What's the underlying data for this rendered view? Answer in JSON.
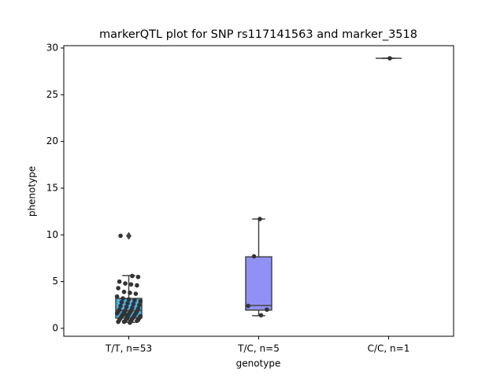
{
  "chart_data": {
    "type": "box",
    "title": "markerQTL plot for SNP rs117141563 and marker_3518",
    "xlabel": "genotype",
    "ylabel": "phenotype",
    "categories": [
      "T/T, n=53",
      "T/C, n=5",
      "C/C, n=1"
    ],
    "colors": [
      "#48b0e8",
      "#9191f5",
      "#8c8cf0"
    ],
    "boxes": [
      {
        "whislo": 0.65,
        "q1": 1.1,
        "med": 1.9,
        "q3": 3.2,
        "whishi": 5.65,
        "fliers": [
          9.9
        ]
      },
      {
        "whislo": 1.35,
        "q1": 1.95,
        "med": 2.45,
        "q3": 7.65,
        "whishi": 11.7,
        "fliers": []
      },
      {
        "whislo": 28.9,
        "q1": 28.9,
        "med": 28.9,
        "q3": 28.9,
        "whishi": 28.9,
        "fliers": []
      }
    ],
    "points": [
      [
        0.6,
        0.7,
        0.7,
        0.8,
        0.8,
        0.8,
        0.9,
        0.9,
        1.0,
        1.0,
        1.1,
        1.1,
        1.2,
        1.2,
        1.3,
        1.3,
        1.4,
        1.5,
        1.5,
        1.6,
        1.6,
        1.7,
        1.7,
        1.8,
        1.8,
        1.9,
        1.9,
        2.0,
        2.1,
        2.2,
        2.3,
        2.4,
        2.5,
        2.6,
        2.7,
        2.8,
        2.9,
        3.0,
        3.1,
        3.2,
        3.4,
        3.7,
        3.8,
        3.9,
        4.3,
        4.6,
        4.7,
        4.8,
        5.0,
        5.5,
        5.6,
        1.4,
        9.9
      ],
      [
        11.7,
        7.7,
        2.4,
        2.0,
        1.4
      ],
      [
        28.9
      ]
    ],
    "ylim": [
      -0.85,
      30.25
    ],
    "yticks": [
      0,
      5,
      10,
      15,
      20,
      25,
      30
    ]
  }
}
